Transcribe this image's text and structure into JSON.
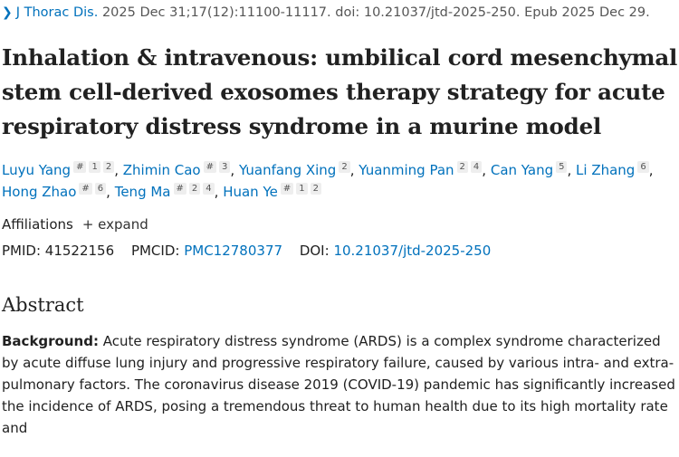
{
  "citation": {
    "journal": "J Thorac Dis.",
    "details": "2025 Dec 31;17(12):11100-11117. doi: 10.21037/jtd-2025-250. Epub 2025 Dec 29."
  },
  "title": "Inhalation & intravenous: umbilical cord mesenchymal stem cell-derived exosomes therapy strategy for acute respiratory distress syndrome in a murine model",
  "authors": [
    {
      "name": "Luyu Yang",
      "sups": [
        "#",
        "1",
        "2"
      ]
    },
    {
      "name": "Zhimin Cao",
      "sups": [
        "#",
        "3"
      ]
    },
    {
      "name": "Yuanfang Xing",
      "sups": [
        "2"
      ]
    },
    {
      "name": "Yuanming Pan",
      "sups": [
        "2",
        "4"
      ]
    },
    {
      "name": "Can Yang",
      "sups": [
        "5"
      ]
    },
    {
      "name": "Li Zhang",
      "sups": [
        "6"
      ]
    },
    {
      "name": "Hong Zhao",
      "sups": [
        "#",
        "6"
      ]
    },
    {
      "name": "Teng Ma",
      "sups": [
        "#",
        "2",
        "4"
      ]
    },
    {
      "name": "Huan Ye",
      "sups": [
        "#",
        "1",
        "2"
      ]
    }
  ],
  "affiliations": {
    "label": "Affiliations",
    "expand": "+ expand"
  },
  "ids": {
    "pmid_label": "PMID:",
    "pmid": "41522156",
    "pmcid_label": "PMCID:",
    "pmcid": "PMC12780377",
    "doi_label": "DOI:",
    "doi": "10.21037/jtd-2025-250"
  },
  "abstract": {
    "heading": "Abstract",
    "background_label": "Background:",
    "background_text": " Acute respiratory distress syndrome (ARDS) is a complex syndrome characterized by acute diffuse lung injury and progressive respiratory failure, caused by various intra- and extra-pulmonary factors. The coronavirus disease 2019 (COVID-19) pandemic has significantly increased the incidence of ARDS, posing a tremendous threat to human health due to its high mortality rate and"
  },
  "colors": {
    "link": "#0071bc",
    "text": "#212121"
  }
}
